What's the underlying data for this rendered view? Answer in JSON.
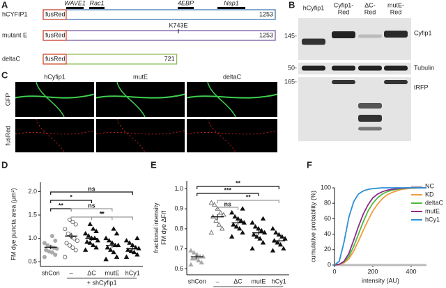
{
  "panel_a": {
    "label": "A",
    "domains": [
      "WAVE1",
      "Rac1",
      "4EBP",
      "Nap1"
    ],
    "constructs": [
      {
        "name": "hCYFIP1",
        "tag": "fusRed",
        "length": 1253,
        "color": "#2f6fae"
      },
      {
        "name": "mutant E",
        "tag": "fusRed",
        "length": 1253,
        "mutation": "K743E",
        "color": "#6d4c9c"
      },
      {
        "name": "deltaC",
        "tag": "fusRed",
        "length": 721,
        "color": "#86b94a"
      }
    ]
  },
  "panel_b": {
    "label": "B",
    "lanes": [
      [
        "hCyfip1"
      ],
      [
        "Cyfip1-",
        "Red"
      ],
      [
        "ΔC-",
        "Red"
      ],
      [
        "mutE-",
        "Red"
      ]
    ],
    "markers": [
      "145-",
      "50-",
      "165-"
    ],
    "blots": [
      "Cyfip1",
      "Tubulin",
      "tRFP"
    ]
  },
  "panel_c": {
    "label": "C",
    "columns": [
      "hCyfip1",
      "mutE",
      "deltaC"
    ],
    "rows": [
      "GFP",
      "fusRed"
    ]
  },
  "chart_data": [
    {
      "type": "strip",
      "panel": "D",
      "y_label": [
        "FM dye puncta area (μm²)"
      ],
      "group_label": "+ shCyfip1",
      "categories": [
        "shCon",
        "–",
        "ΔC",
        "mutE",
        "hCy1"
      ],
      "points": [
        [
          0.6,
          0.65,
          0.7,
          0.72,
          0.75,
          0.78,
          0.8,
          0.82,
          0.85,
          0.9,
          0.95,
          1.05
        ],
        [
          0.6,
          0.75,
          0.8,
          0.85,
          0.9,
          0.95,
          1.0,
          1.05,
          1.1,
          1.2,
          1.3,
          1.35,
          1.4
        ],
        [
          0.75,
          0.8,
          0.85,
          0.9,
          0.92,
          0.95,
          1.0,
          1.0,
          1.05,
          1.1,
          1.15,
          1.2,
          1.3
        ],
        [
          0.55,
          0.6,
          0.7,
          0.75,
          0.8,
          0.85,
          0.85,
          0.9,
          0.95,
          1.0,
          1.1,
          1.2
        ],
        [
          0.6,
          0.65,
          0.7,
          0.72,
          0.75,
          0.78,
          0.8,
          0.85,
          0.9,
          0.95,
          1.0
        ]
      ],
      "means": [
        0.81,
        1.05,
        1.0,
        0.85,
        0.78
      ],
      "errors": [
        0.04,
        0.07,
        0.05,
        0.05,
        0.04
      ],
      "marker_shapes": [
        "circle",
        "circle",
        "triangle",
        "triangle",
        "triangle"
      ],
      "marker_colors": [
        "#aaaaaa",
        "#ffffff",
        "#111111",
        "#111111",
        "#111111"
      ],
      "ylim": [
        0.4,
        2.2
      ],
      "yticks": [
        0.5,
        {
          "value": 1,
          "label": "1.0"
        },
        1.5,
        {
          "value": 2,
          "label": "2.0"
        }
      ],
      "annotations": [
        {
          "text": "ns",
          "color": "#111111"
        },
        {
          "text": "*",
          "color": "#111111"
        },
        {
          "text": "**",
          "color": "#111111"
        },
        {
          "text": "ns",
          "color": "#999999"
        },
        {
          "text": "*",
          "color": "#999999"
        },
        {
          "text": "**",
          "color": "#999999"
        }
      ]
    },
    {
      "type": "strip",
      "panel": "E",
      "y_label": [
        "fractional intensity",
        "FM dye ΔF/f"
      ],
      "group_label": "+ shCyfip1",
      "categories": [
        "shCon",
        "–",
        "ΔC",
        "mutE",
        "hCy1"
      ],
      "points": [
        [
          0.62,
          0.63,
          0.64,
          0.65,
          0.65,
          0.66,
          0.66,
          0.67,
          0.68,
          0.69
        ],
        [
          0.78,
          0.8,
          0.82,
          0.84,
          0.86,
          0.87,
          0.88,
          0.9,
          0.92,
          0.93
        ],
        [
          0.76,
          0.78,
          0.8,
          0.81,
          0.82,
          0.83,
          0.84,
          0.85,
          0.86,
          0.88,
          0.9
        ],
        [
          0.7,
          0.73,
          0.75,
          0.76,
          0.77,
          0.78,
          0.79,
          0.8,
          0.81,
          0.83,
          0.85
        ],
        [
          0.69,
          0.7,
          0.72,
          0.73,
          0.74,
          0.75,
          0.76,
          0.77,
          0.78,
          0.8
        ]
      ],
      "means": [
        0.66,
        0.86,
        0.83,
        0.78,
        0.74
      ],
      "errors": [
        0.01,
        0.015,
        0.012,
        0.012,
        0.01
      ],
      "marker_shapes": [
        "triangle",
        "triangle",
        "triangle",
        "triangle",
        "triangle"
      ],
      "marker_colors": [
        "#aaaaaa",
        "#ffffff",
        "#111111",
        "#111111",
        "#111111"
      ],
      "ylim": [
        0.57,
        1.04
      ],
      "yticks": [
        0.6,
        0.7,
        0.8,
        0.9,
        {
          "value": 1,
          "label": "1.0"
        }
      ],
      "annotations": [
        {
          "text": "**",
          "color": "#111111"
        },
        {
          "text": "***",
          "color": "#111111"
        },
        {
          "text": "**",
          "color": "#999999"
        },
        {
          "text": "ns",
          "color": "#999999"
        }
      ]
    },
    {
      "type": "line",
      "panel": "F",
      "y_label": "cumulative probability (%)",
      "x_label": "intensity (AU)",
      "x": [
        0,
        25,
        50,
        75,
        100,
        125,
        150,
        175,
        200,
        225,
        250,
        275,
        300,
        350,
        400,
        450,
        480
      ],
      "series": [
        {
          "name": "NC",
          "color": "#bbbbbb",
          "values": [
            0,
            0,
            0,
            0,
            0,
            0,
            0,
            0,
            0,
            0,
            0,
            0,
            0,
            0,
            0,
            0,
            0
          ]
        },
        {
          "name": "KD",
          "color": "#f39a3c",
          "values": [
            0,
            0.5,
            3,
            8,
            18,
            31,
            45,
            58,
            70,
            79,
            86,
            91,
            94,
            98,
            99.5,
            100,
            100
          ]
        },
        {
          "name": "deltaC",
          "color": "#4cbb3a",
          "values": [
            0,
            1,
            4,
            11,
            24,
            40,
            56,
            70,
            80,
            87,
            92,
            95,
            97,
            99,
            100,
            100,
            100
          ]
        },
        {
          "name": "mutE",
          "color": "#8e2a8e",
          "values": [
            0,
            1,
            5,
            15,
            32,
            50,
            66,
            78,
            87,
            92,
            95,
            97,
            98,
            99.5,
            100,
            100,
            100
          ]
        },
        {
          "name": "hCy1",
          "color": "#2b8fd6",
          "values": [
            0,
            5,
            30,
            62,
            82,
            92,
            96,
            98,
            99,
            99.5,
            100,
            100,
            100,
            100,
            100,
            100,
            100
          ]
        }
      ],
      "xlim": [
        0,
        480
      ],
      "xticks": [
        0,
        200,
        400
      ],
      "ylim": [
        0,
        100
      ],
      "yticks": [
        0,
        20,
        40,
        60,
        80,
        100
      ]
    }
  ]
}
